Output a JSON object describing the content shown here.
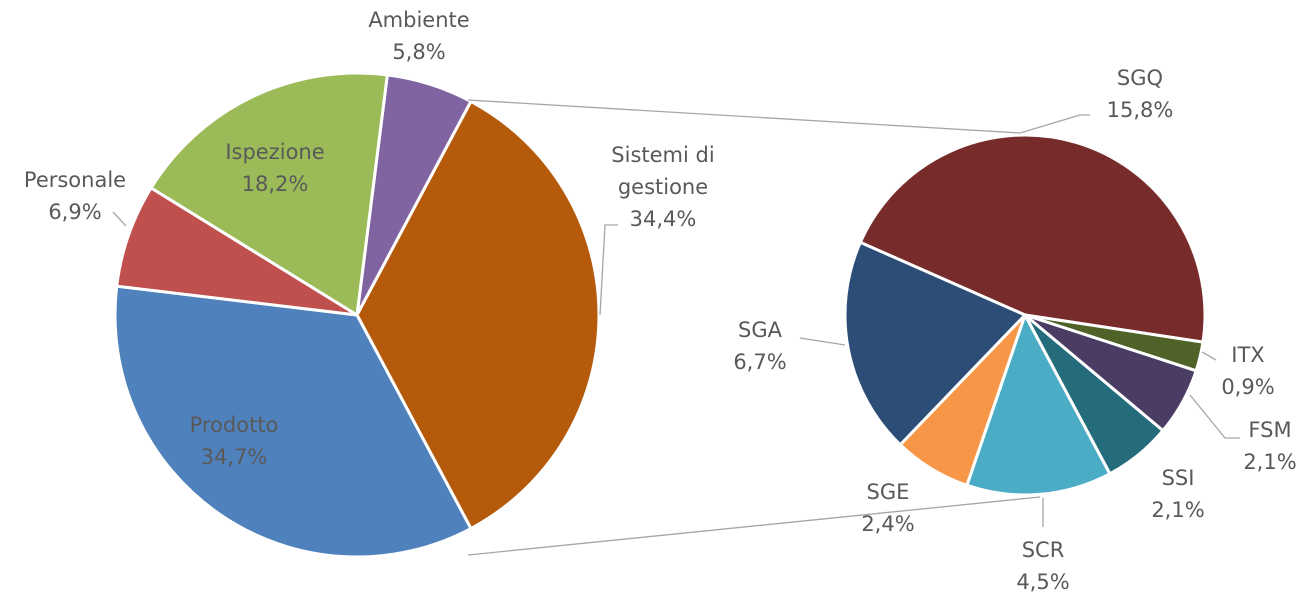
{
  "chart_data": [
    {
      "type": "pie",
      "categories": [
        "Ambiente",
        "Sistemi di gestione",
        "Prodotto",
        "Personale",
        "Ispezione"
      ],
      "values": [
        5.8,
        34.4,
        34.7,
        6.9,
        18.2
      ],
      "value_labels": [
        "5,8%",
        "34,4%",
        "34,7%",
        "6,9%",
        "18,2%"
      ],
      "colors": [
        "#8064a2",
        "#b55a0a",
        "#4f81bd",
        "#c0504d",
        "#9bbb59"
      ]
    },
    {
      "type": "pie",
      "categories": [
        "SGQ",
        "ITX",
        "FSM",
        "SSI",
        "SCR",
        "SGE",
        "SGA"
      ],
      "values": [
        15.8,
        0.9,
        2.1,
        2.1,
        4.5,
        2.4,
        6.7
      ],
      "value_labels": [
        "15,8%",
        "0,9%",
        "2,1%",
        "2,1%",
        "4,5%",
        "2,4%",
        "6,7%"
      ],
      "colors": [
        "#772b2b",
        "#4f6228",
        "#4b3c63",
        "#246b7b",
        "#4bacc6",
        "#f79646",
        "#2c4d75"
      ]
    }
  ]
}
